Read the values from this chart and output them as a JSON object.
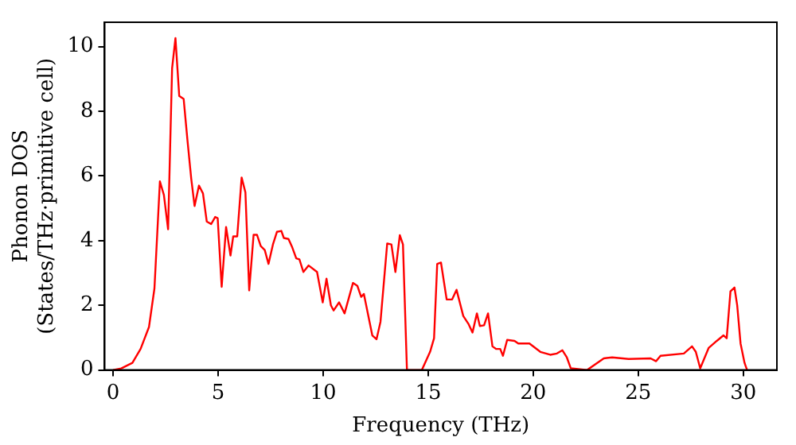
{
  "chart_data": {
    "type": "line",
    "xlabel": "Frequency (THz)",
    "ylabel": "Phonon DOS\n(States/THz·primitive cell)",
    "xlim": [
      -0.4,
      31.6
    ],
    "xticks": [
      0,
      5,
      10,
      15,
      20,
      25,
      30
    ],
    "ylim": [
      0,
      10.75
    ],
    "yticks": [
      0,
      2,
      4,
      6,
      8,
      10
    ],
    "grid": false,
    "legend": false,
    "marker": "none",
    "line_style": "solid",
    "series": [
      {
        "color": "#ff0000",
        "x": [
          0,
          0.39,
          0.92,
          1.31,
          1.71,
          1.97,
          2.23,
          2.42,
          2.62,
          2.81,
          2.97,
          3.15,
          3.36,
          3.54,
          3.72,
          3.88,
          4.09,
          4.28,
          4.46,
          4.67,
          4.86,
          4.98,
          5.17,
          5.38,
          5.59,
          5.72,
          5.91,
          6.12,
          6.3,
          6.48,
          6.69,
          6.85,
          7.03,
          7.22,
          7.4,
          7.61,
          7.8,
          8.01,
          8.13,
          8.35,
          8.53,
          8.72,
          8.87,
          9.06,
          9.31,
          9.71,
          9.98,
          10.16,
          10.37,
          10.5,
          10.76,
          11.02,
          11.42,
          11.63,
          11.81,
          11.94,
          12.34,
          12.54,
          12.73,
          13.05,
          13.25,
          13.44,
          13.65,
          13.8,
          13.99,
          14.7,
          15.09,
          15.28,
          15.43,
          15.61,
          15.88,
          16.14,
          16.35,
          16.67,
          16.93,
          17.11,
          17.32,
          17.46,
          17.66,
          17.85,
          18.06,
          18.24,
          18.43,
          18.56,
          18.76,
          19.11,
          19.29,
          19.82,
          20.34,
          20.81,
          21.13,
          21.39,
          21.6,
          21.79,
          22.57,
          23.36,
          23.76,
          24.54,
          25.59,
          25.85,
          26.06,
          27.17,
          27.56,
          27.74,
          27.95,
          28.35,
          28.74,
          29.06,
          29.21,
          29.39,
          29.58,
          29.71,
          29.87,
          30.06,
          30.18
        ],
        "values": [
          0,
          0.05,
          0.22,
          0.65,
          1.33,
          2.52,
          5.83,
          5.41,
          4.35,
          9.32,
          10.26,
          8.47,
          8.38,
          7.11,
          5.92,
          5.07,
          5.7,
          5.46,
          4.59,
          4.51,
          4.73,
          4.69,
          2.57,
          4.42,
          3.54,
          4.13,
          4.13,
          5.95,
          5.49,
          2.46,
          4.18,
          4.18,
          3.83,
          3.71,
          3.28,
          3.88,
          4.27,
          4.3,
          4.08,
          4.05,
          3.79,
          3.45,
          3.42,
          3.03,
          3.23,
          3.03,
          2.09,
          2.82,
          2.0,
          1.84,
          2.09,
          1.75,
          2.69,
          2.6,
          2.26,
          2.35,
          1.07,
          0.95,
          1.49,
          3.91,
          3.88,
          3.03,
          4.17,
          3.88,
          0,
          0,
          0.56,
          0.98,
          3.28,
          3.32,
          2.18,
          2.18,
          2.48,
          1.67,
          1.41,
          1.16,
          1.75,
          1.36,
          1.38,
          1.75,
          0.73,
          0.65,
          0.65,
          0.44,
          0.93,
          0.9,
          0.82,
          0.82,
          0.56,
          0.47,
          0.51,
          0.61,
          0.39,
          0.05,
          0,
          0.36,
          0.39,
          0.34,
          0.36,
          0.27,
          0.44,
          0.51,
          0.73,
          0.56,
          0.05,
          0.68,
          0.9,
          1.07,
          0.98,
          2.43,
          2.55,
          2,
          0.82,
          0.22,
          0
        ]
      }
    ]
  }
}
